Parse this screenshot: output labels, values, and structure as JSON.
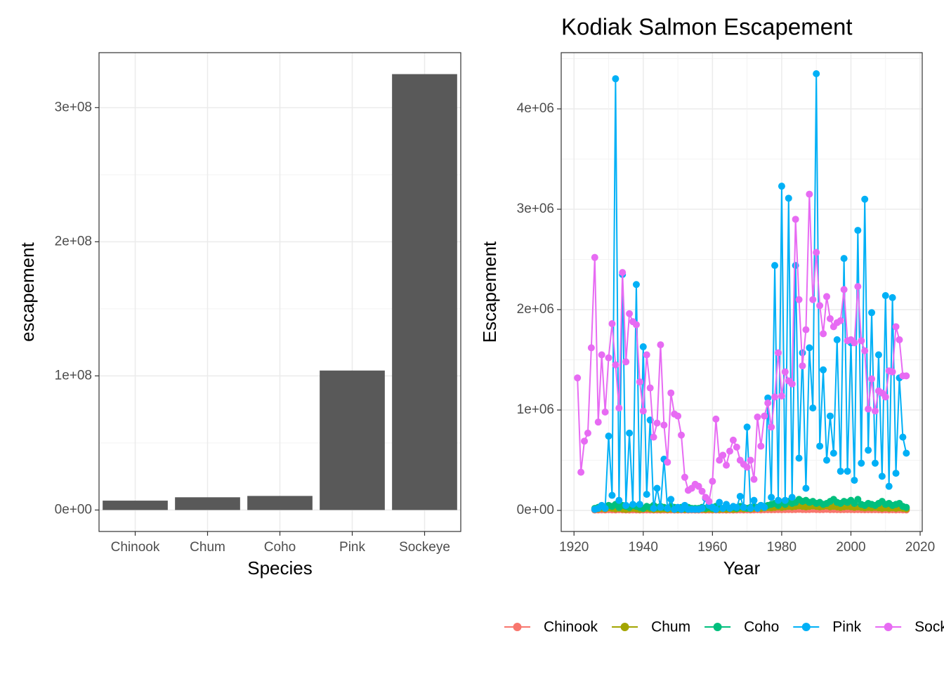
{
  "chart_data": [
    {
      "type": "bar",
      "categories": [
        "Chinook",
        "Chum",
        "Coho",
        "Pink",
        "Sockeye"
      ],
      "values": [
        7000000.0,
        9500000.0,
        10500000.0,
        104000000.0,
        325000000.0
      ],
      "color": "#595959",
      "xlabel": "Species",
      "ylabel": "escapement",
      "ylim": [
        -16000000.0,
        341000000.0
      ],
      "yticks": [
        {
          "value": 0,
          "label": "0e+00"
        },
        {
          "value": 100000000.0,
          "label": "1e+08"
        },
        {
          "value": 200000000.0,
          "label": "2e+08"
        },
        {
          "value": 300000000.0,
          "label": "3e+08"
        }
      ],
      "grid": true
    },
    {
      "type": "line",
      "title": "Kodiak Salmon Escapement",
      "xlabel": "Year",
      "ylabel": "Escapement",
      "x": [
        1921,
        1922,
        1923,
        1924,
        1925,
        1926,
        1927,
        1928,
        1929,
        1930,
        1931,
        1932,
        1933,
        1934,
        1935,
        1936,
        1937,
        1938,
        1939,
        1940,
        1941,
        1942,
        1943,
        1944,
        1945,
        1946,
        1947,
        1948,
        1949,
        1950,
        1951,
        1952,
        1953,
        1954,
        1955,
        1956,
        1957,
        1958,
        1959,
        1960,
        1961,
        1962,
        1963,
        1964,
        1965,
        1966,
        1967,
        1968,
        1969,
        1970,
        1971,
        1972,
        1973,
        1974,
        1975,
        1976,
        1977,
        1978,
        1979,
        1980,
        1981,
        1982,
        1983,
        1984,
        1985,
        1986,
        1987,
        1988,
        1989,
        1990,
        1991,
        1992,
        1993,
        1994,
        1995,
        1996,
        1997,
        1998,
        1999,
        2000,
        2001,
        2002,
        2003,
        2004,
        2005,
        2006,
        2007,
        2008,
        2009,
        2010,
        2011,
        2012,
        2013,
        2014,
        2015,
        2016
      ],
      "series": [
        {
          "name": "Chinook",
          "color": "#F8766D",
          "values": [
            null,
            null,
            null,
            null,
            null,
            3000.0,
            4000.0,
            5000.0,
            4000.0,
            6000.0,
            5000.0,
            4000.0,
            6000.0,
            5000.0,
            4000.0,
            3000.0,
            5000.0,
            4000.0,
            3000.0,
            4000.0,
            5000.0,
            4000.0,
            3000.0,
            4000.0,
            3000.0,
            4000.0,
            3000.0,
            4000.0,
            3000.0,
            3000.0,
            4000.0,
            3000.0,
            3000.0,
            4000.0,
            3000.0,
            3000.0,
            4000.0,
            3000.0,
            4000.0,
            3000.0,
            4000.0,
            3000.0,
            4000.0,
            3000.0,
            4000.0,
            3000.0,
            4000.0,
            5000.0,
            4000.0,
            5000.0,
            4000.0,
            5000.0,
            6000.0,
            5000.0,
            6000.0,
            7000.0,
            6000.0,
            7000.0,
            8000.0,
            7000.0,
            8000.0,
            9000.0,
            8000.0,
            9000.0,
            10000.0,
            9000.0,
            8000.0,
            9000.0,
            10000.0,
            9000.0,
            8000.0,
            9000.0,
            10000.0,
            8000.0,
            9000.0,
            8000.0,
            7000.0,
            8000.0,
            9000.0,
            8000.0,
            7000.0,
            8000.0,
            7000.0,
            6000.0,
            7000.0,
            6000.0,
            7000.0,
            6000.0,
            5000.0,
            6000.0,
            5000.0,
            6000.0,
            5000.0,
            6000.0,
            5000.0,
            4000.0
          ]
        },
        {
          "name": "Chum",
          "color": "#A3A500",
          "values": [
            null,
            null,
            null,
            null,
            null,
            10000.0,
            15000.0,
            20000.0,
            15000.0,
            25000.0,
            20000.0,
            15000.0,
            20000.0,
            15000.0,
            10000.0,
            15000.0,
            20000.0,
            15000.0,
            10000.0,
            15000.0,
            20000.0,
            15000.0,
            10000.0,
            15000.0,
            10000.0,
            15000.0,
            10000.0,
            15000.0,
            10000.0,
            10000.0,
            15000.0,
            10000.0,
            10000.0,
            15000.0,
            10000.0,
            10000.0,
            15000.0,
            10000.0,
            15000.0,
            10000.0,
            15000.0,
            10000.0,
            15000.0,
            10000.0,
            15000.0,
            10000.0,
            15000.0,
            20000.0,
            15000.0,
            20000.0,
            15000.0,
            20000.0,
            25000.0,
            20000.0,
            25000.0,
            30000.0,
            25000.0,
            30000.0,
            35000.0,
            30000.0,
            35000.0,
            40000.0,
            35000.0,
            40000.0,
            45000.0,
            40000.0,
            35000.0,
            40000.0,
            45000.0,
            40000.0,
            35000.0,
            40000.0,
            45000.0,
            35000.0,
            40000.0,
            35000.0,
            30000.0,
            35000.0,
            40000.0,
            35000.0,
            30000.0,
            35000.0,
            30000.0,
            25000.0,
            30000.0,
            25000.0,
            30000.0,
            25000.0,
            20000.0,
            25000.0,
            20000.0,
            25000.0,
            20000.0,
            25000.0,
            20000.0,
            15000.0
          ]
        },
        {
          "name": "Coho",
          "color": "#00BF7D",
          "values": [
            null,
            null,
            null,
            null,
            null,
            20000.0,
            30000.0,
            40000.0,
            30000.0,
            50000.0,
            40000.0,
            60000.0,
            30000.0,
            50000.0,
            40000.0,
            30000.0,
            50000.0,
            40000.0,
            30000.0,
            20000.0,
            40000.0,
            30000.0,
            50000.0,
            30000.0,
            40000.0,
            30000.0,
            20000.0,
            40000.0,
            30000.0,
            20000.0,
            30000.0,
            20000.0,
            30000.0,
            20000.0,
            20000.0,
            20000.0,
            30000.0,
            20000.0,
            30000.0,
            20000.0,
            40000.0,
            30000.0,
            20000.0,
            30000.0,
            20000.0,
            30000.0,
            20000.0,
            40000.0,
            30000.0,
            20000.0,
            30000.0,
            40000.0,
            30000.0,
            50000.0,
            40000.0,
            50000.0,
            60000.0,
            70000.0,
            50000.0,
            80000.0,
            60000.0,
            90000.0,
            70000.0,
            80000.0,
            110000.0,
            90000.0,
            100000.0,
            80000.0,
            90000.0,
            70000.0,
            80000.0,
            60000.0,
            70000.0,
            90000.0,
            110000.0,
            80000.0,
            70000.0,
            90000.0,
            80000.0,
            100000.0,
            70000.0,
            110000.0,
            60000.0,
            50000.0,
            70000.0,
            60000.0,
            50000.0,
            70000.0,
            90000.0,
            60000.0,
            70000.0,
            50000.0,
            60000.0,
            70000.0,
            40000.0,
            30000.0
          ]
        },
        {
          "name": "Pink",
          "color": "#00B0F6",
          "values": [
            null,
            null,
            null,
            null,
            null,
            10000.0,
            20000.0,
            50000.0,
            20000.0,
            740000.0,
            150000.0,
            4300000.0,
            100000.0,
            2350000.0,
            50000.0,
            770000.0,
            60000.0,
            2250000.0,
            60000.0,
            1630000.0,
            160000.0,
            900000.0,
            20000.0,
            220000.0,
            30000.0,
            510000.0,
            20000.0,
            110000.0,
            10000.0,
            30000.0,
            10000.0,
            50000.0,
            10000.0,
            10000.0,
            10000.0,
            10000.0,
            20000.0,
            120000.0,
            50000.0,
            30000.0,
            10000.0,
            80000.0,
            20000.0,
            60000.0,
            20000.0,
            40000.0,
            30000.0,
            140000.0,
            30000.0,
            830000.0,
            20000.0,
            100000.0,
            20000.0,
            50000.0,
            30000.0,
            1120000.0,
            130000.0,
            2440000.0,
            100000.0,
            3230000.0,
            100000.0,
            3110000.0,
            130000.0,
            2440000.0,
            520000.0,
            1570000.0,
            220000.0,
            1620000.0,
            1020000.0,
            4350000.0,
            640000.0,
            1400000.0,
            500000.0,
            940000.0,
            570000.0,
            1700000.0,
            390000.0,
            2510000.0,
            390000.0,
            1670000.0,
            300000.0,
            2790000.0,
            470000.0,
            3100000.0,
            600000.0,
            1970000.0,
            470000.0,
            1550000.0,
            340000.0,
            2140000.0,
            240000.0,
            2120000.0,
            370000.0,
            1320000.0,
            730000.0,
            570000.0
          ]
        },
        {
          "name": "Sockeye",
          "color": "#E76BF3",
          "values": [
            1320000.0,
            380000.0,
            690000.0,
            770000.0,
            1620000.0,
            2520000.0,
            880000.0,
            1550000.0,
            980000.0,
            1520000.0,
            1860000.0,
            1450000.0,
            1020000.0,
            2370000.0,
            1480000.0,
            1960000.0,
            1880000.0,
            1850000.0,
            1280000.0,
            990000.0,
            1550000.0,
            1220000.0,
            730000.0,
            870000.0,
            1650000.0,
            850000.0,
            480000.0,
            1170000.0,
            960000.0,
            940000.0,
            750000.0,
            330000.0,
            200000.0,
            220000.0,
            260000.0,
            240000.0,
            190000.0,
            130000.0,
            90000.0,
            290000.0,
            910000.0,
            500000.0,
            550000.0,
            450000.0,
            590000.0,
            700000.0,
            630000.0,
            500000.0,
            460000.0,
            430000.0,
            500000.0,
            310000.0,
            930000.0,
            640000.0,
            940000.0,
            1070000.0,
            830000.0,
            1130000.0,
            1570000.0,
            1140000.0,
            1380000.0,
            1290000.0,
            1260000.0,
            2900000.0,
            2100000.0,
            1440000.0,
            1800000.0,
            3150000.0,
            2100000.0,
            2570000.0,
            2040000.0,
            1760000.0,
            2130000.0,
            1910000.0,
            1830000.0,
            1870000.0,
            1890000.0,
            2200000.0,
            1690000.0,
            1700000.0,
            1670000.0,
            2230000.0,
            1690000.0,
            1590000.0,
            1010000.0,
            1310000.0,
            990000.0,
            1190000.0,
            1170000.0,
            1130000.0,
            1390000.0,
            1380000.0,
            1830000.0,
            1700000.0,
            1340000.0,
            1340000.0
          ]
        }
      ],
      "xlim": [
        1916.3,
        2020.6
      ],
      "ylim": [
        -210000.0,
        4560000.0
      ],
      "xticks": [
        1920,
        1940,
        1960,
        1980,
        2000,
        2020
      ],
      "yticks": [
        {
          "value": 0,
          "label": "0e+00"
        },
        {
          "value": 1000000.0,
          "label": "1e+06"
        },
        {
          "value": 2000000.0,
          "label": "2e+06"
        },
        {
          "value": 3000000.0,
          "label": "3e+06"
        },
        {
          "value": 4000000.0,
          "label": "4e+06"
        }
      ],
      "legend": "bottom",
      "grid": true
    }
  ]
}
